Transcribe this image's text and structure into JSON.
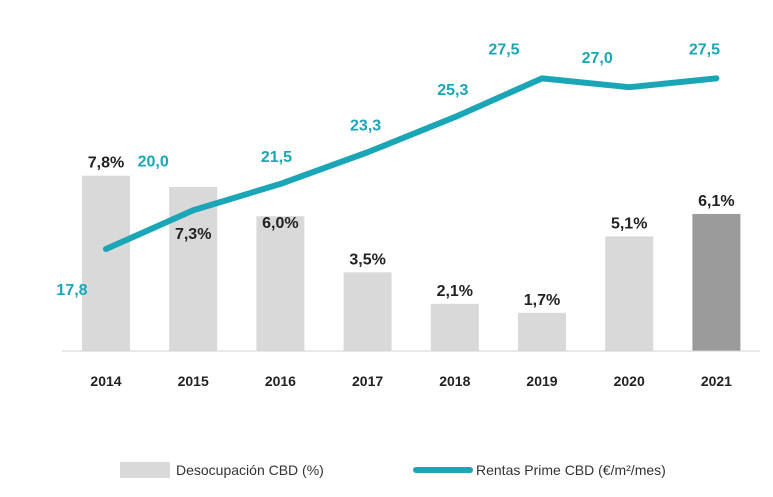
{
  "chart_data": {
    "type": "bar+line",
    "title": "",
    "categories": [
      "2014",
      "2015",
      "2016",
      "2017",
      "2018",
      "2019",
      "2020",
      "2021"
    ],
    "series": [
      {
        "name": "Desocupación CBD (%)",
        "type": "bar",
        "values": [
          7.8,
          7.3,
          6.0,
          3.5,
          2.1,
          1.7,
          5.1,
          6.1
        ],
        "labels": [
          "7,8%",
          "7,3%",
          "6,0%",
          "3,5%",
          "2,1%",
          "1,7%",
          "5,1%",
          "6,1%"
        ],
        "color": "#d9d9d9",
        "highlight_color": "#9b9b9b",
        "highlight_category": "2021",
        "label_color": "#222222"
      },
      {
        "name": "Rentas Prime CBD (€/m²/mes)",
        "type": "line",
        "values": [
          17.8,
          20.0,
          21.5,
          23.3,
          25.3,
          27.5,
          27.0,
          27.5
        ],
        "labels": [
          "17,8",
          "20,0",
          "21,5",
          "23,3",
          "25,3",
          "27,5",
          "27,0",
          "27,5"
        ],
        "color": "#1aa6b7"
      }
    ],
    "bar_axis_range": [
      0,
      8.5
    ],
    "line_axis_range": [
      12,
      29
    ],
    "legend": {
      "position": "bottom",
      "items": [
        {
          "label": "Desocupación CBD (%)",
          "marker": "bar"
        },
        {
          "label": "Rentas Prime CBD (€/m²/mes)",
          "marker": "line"
        }
      ]
    },
    "xlabel": "",
    "ylabel": "",
    "grid": false
  }
}
